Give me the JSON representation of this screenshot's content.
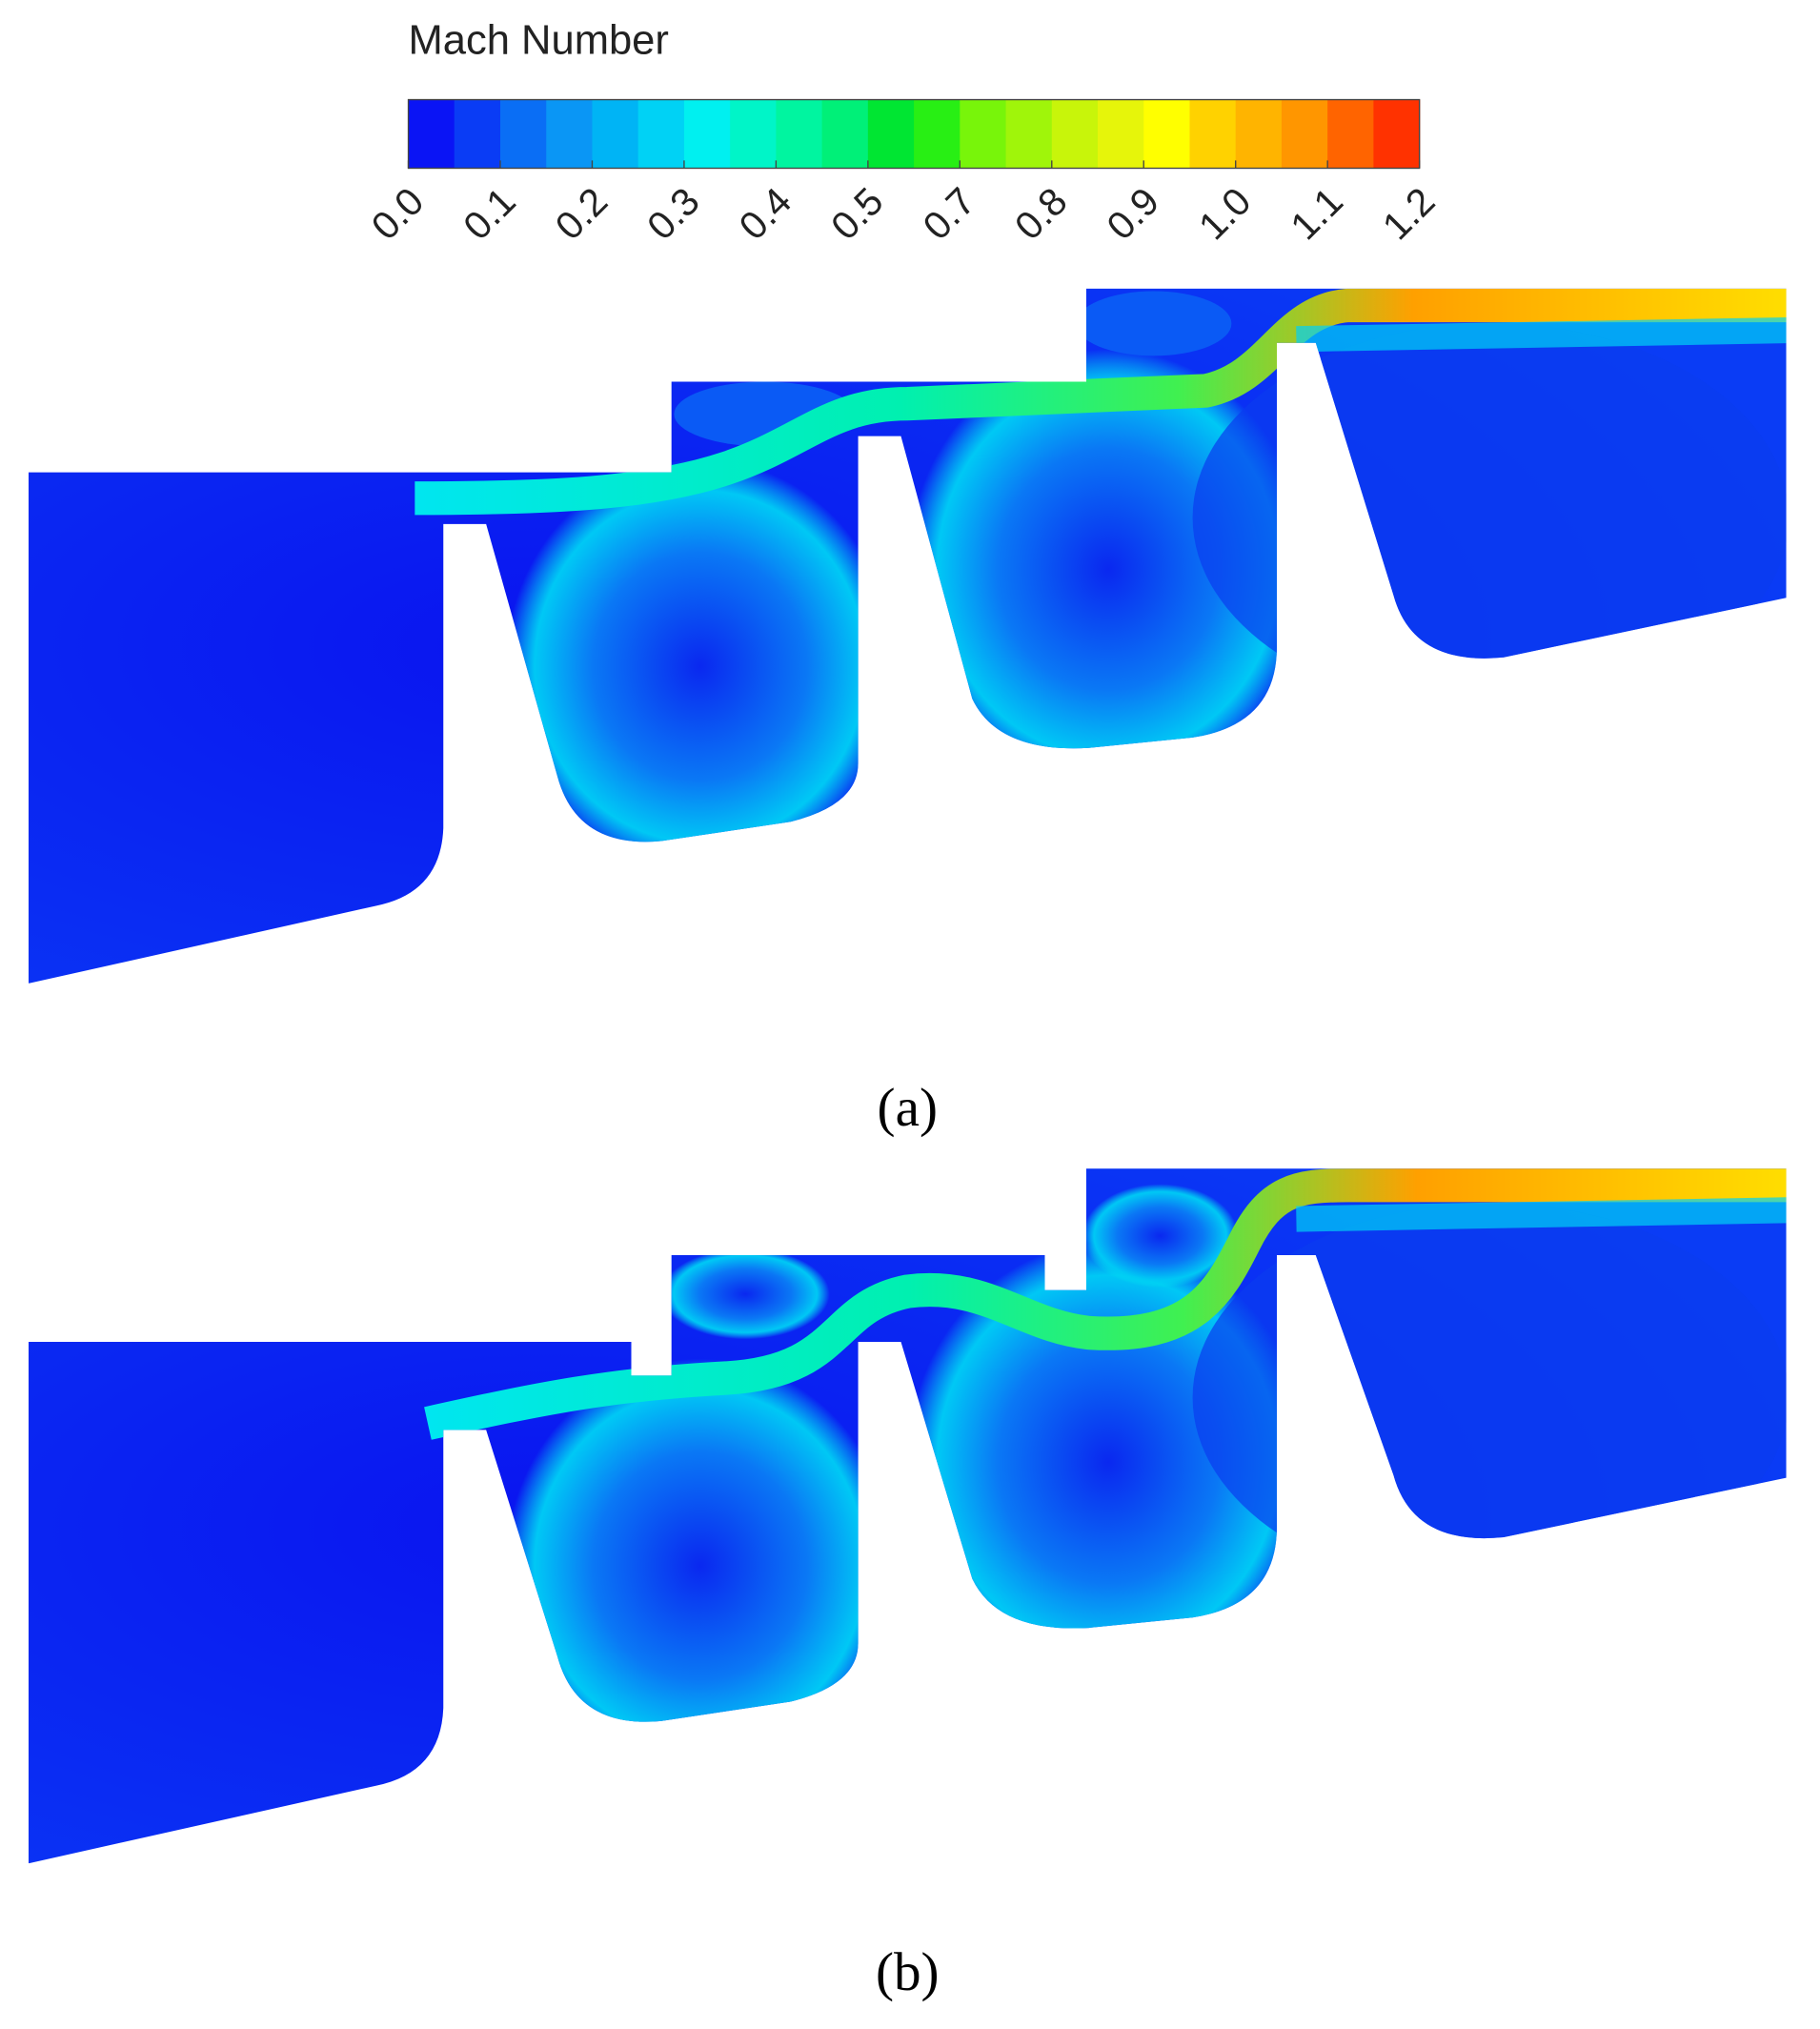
{
  "colorbar": {
    "title": "Mach Number",
    "ticks": [
      "0.0",
      "0.1",
      "0.2",
      "0.3",
      "0.4",
      "0.5",
      "0.7",
      "0.8",
      "0.9",
      "1.0",
      "1.1",
      "1.2"
    ],
    "colors": [
      "#0a14f5",
      "#0a3cf5",
      "#0a6ef5",
      "#0a96f5",
      "#00b4f5",
      "#00d2f5",
      "#00f0f0",
      "#00f5c8",
      "#00f5a0",
      "#00f078",
      "#00e632",
      "#28ef14",
      "#78f50a",
      "#a0f50a",
      "#c8f50a",
      "#e6f50a",
      "#ffff00",
      "#ffd200",
      "#ffb400",
      "#ff9600",
      "#ff6400",
      "#ff3200"
    ]
  },
  "panels": [
    {
      "label": "(a)"
    },
    {
      "label": "(b)"
    }
  ]
}
